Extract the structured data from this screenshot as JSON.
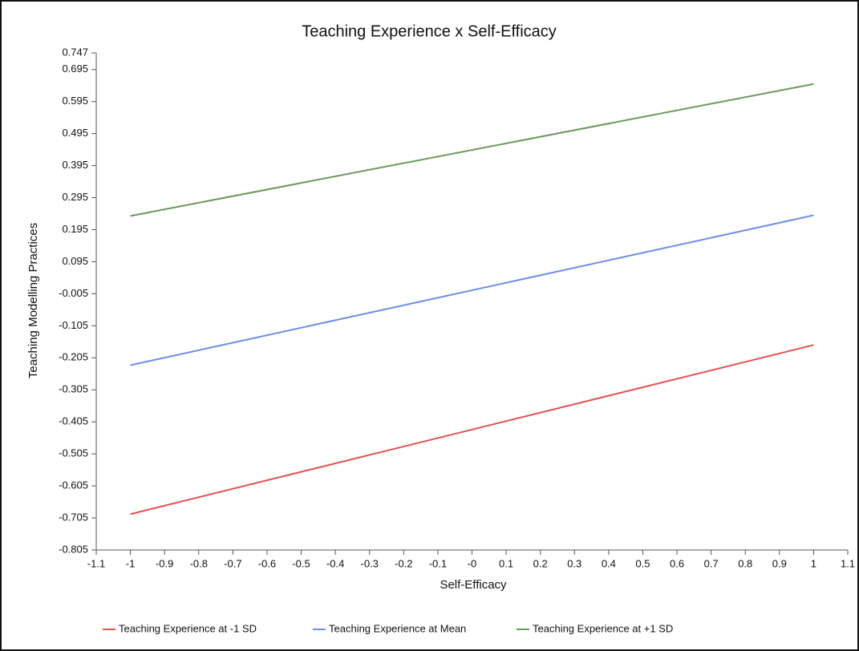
{
  "chart_data": {
    "type": "line",
    "title": "Teaching Experience x Self-Efficacy",
    "x_label": "Self-Efficacy",
    "y_label": "Teaching Modelling Practices",
    "x": [
      -1,
      1
    ],
    "series": [
      {
        "name": "Teaching Experience at -1 SD",
        "color": "#e0524f",
        "values": [
          -0.693,
          -0.165
        ]
      },
      {
        "name": "Teaching Experience at Mean",
        "color": "#6f8fe6",
        "values": [
          -0.228,
          0.24
        ]
      },
      {
        "name": "Teaching Experience at +1 SD",
        "color": "#6b9a5c",
        "values": [
          0.238,
          0.65
        ]
      }
    ],
    "xlim": [
      -1.1,
      1.1
    ],
    "xticks": [
      -1.1,
      -1,
      -0.9,
      -0.8,
      -0.7,
      -0.6,
      -0.5,
      -0.4,
      -0.3,
      -0.2,
      -0.1,
      {
        "value": 0,
        "label": "-0"
      },
      0.1,
      0.2,
      0.3,
      0.4,
      0.5,
      0.6,
      0.7,
      0.8,
      0.9,
      1,
      1.1
    ],
    "ylim": [
      -0.805,
      0.747
    ],
    "yticks": [
      0.747,
      0.695,
      0.595,
      0.495,
      0.395,
      0.295,
      0.195,
      0.095,
      -0.005,
      -0.105,
      -0.205,
      -0.305,
      -0.405,
      -0.505,
      -0.605,
      -0.705,
      -0.805
    ],
    "grid": false,
    "legend": "bottom"
  }
}
